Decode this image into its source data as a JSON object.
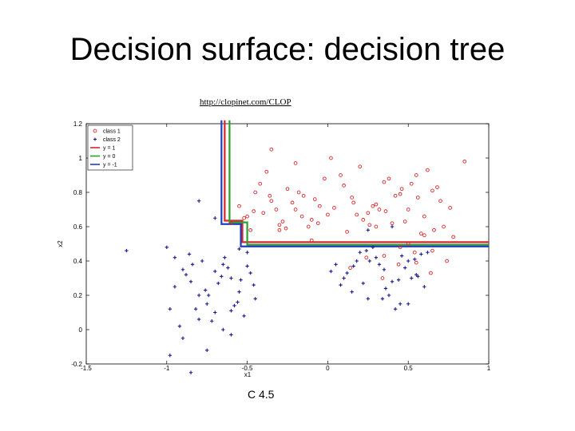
{
  "slide": {
    "title": "Decision surface: decision tree",
    "url": "http://clopinet.com/CLOP",
    "caption": "C 4.5"
  },
  "chart_data": {
    "type": "scatter",
    "xlabel": "x1",
    "ylabel": "x2",
    "xlim": [
      -1.5,
      1
    ],
    "ylim": [
      -0.2,
      1.2
    ],
    "xticks": [
      -1.5,
      -1,
      -0.5,
      0,
      0.5,
      1
    ],
    "xtick_labels": [
      "-1.5",
      "-1",
      "-0.5",
      "0",
      "0.5",
      "1"
    ],
    "yticks": [
      -0.2,
      0,
      0.2,
      0.4,
      0.6,
      0.8,
      1,
      1.2
    ],
    "ytick_labels": [
      "-0.2",
      "0",
      "0.2",
      "0.4",
      "0.6",
      "0.8",
      "1",
      "1.2"
    ],
    "legend_position": "top-left",
    "colors": {
      "class1": "#d62728",
      "class2": "#1a1a8c",
      "y1": "#d62728",
      "y0": "#2ca02c",
      "ym1": "#1f3fbf"
    },
    "series": [
      {
        "name": "class 1",
        "marker": "o",
        "color": "#d62728",
        "x": [
          -0.6,
          -0.55,
          -0.5,
          -0.45,
          -0.4,
          -0.35,
          -0.3,
          -0.25,
          -0.2,
          -0.15,
          -0.1,
          -0.05,
          0.0,
          -0.48,
          -0.42,
          -0.38,
          -0.32,
          -0.28,
          -0.22,
          -0.18,
          -0.12,
          -0.08,
          -0.02,
          -0.52,
          -0.46,
          -0.36,
          -0.26,
          -0.16,
          -0.06,
          0.04,
          0.1,
          0.15,
          0.2,
          0.25,
          0.3,
          0.35,
          0.4,
          0.45,
          0.5,
          0.55,
          0.6,
          0.65,
          0.7,
          0.12,
          0.22,
          0.32,
          0.42,
          0.52,
          0.62,
          0.72,
          0.18,
          0.28,
          0.38,
          0.48,
          0.58,
          0.68,
          0.78,
          0.85,
          0.08,
          0.16,
          0.26,
          0.36,
          0.46,
          0.56,
          0.66,
          0.76,
          0.14,
          0.24,
          0.34,
          0.44,
          0.54,
          0.64,
          0.74,
          -0.35,
          -0.2,
          0.02,
          0.3,
          0.5,
          0.6,
          -0.3,
          -0.1,
          0.35,
          0.45,
          0.55,
          0.65
        ],
        "y": [
          0.62,
          0.72,
          0.66,
          0.8,
          0.68,
          0.75,
          0.61,
          0.82,
          0.7,
          0.78,
          0.64,
          0.72,
          0.67,
          0.58,
          0.85,
          0.92,
          0.7,
          0.63,
          0.74,
          0.8,
          0.6,
          0.76,
          0.88,
          0.65,
          0.69,
          0.78,
          0.59,
          0.66,
          0.62,
          0.71,
          0.84,
          0.77,
          0.95,
          0.68,
          0.73,
          0.86,
          0.62,
          0.79,
          0.7,
          0.9,
          0.66,
          0.81,
          0.75,
          0.57,
          0.64,
          0.7,
          0.78,
          0.85,
          0.93,
          0.6,
          0.67,
          0.72,
          0.88,
          0.63,
          0.56,
          0.83,
          0.54,
          0.98,
          0.9,
          0.74,
          0.61,
          0.69,
          0.82,
          0.77,
          0.58,
          0.71,
          0.36,
          0.42,
          0.3,
          0.38,
          0.45,
          0.33,
          0.4,
          1.05,
          0.97,
          1.0,
          0.6,
          0.5,
          0.55,
          0.58,
          0.52,
          0.43,
          0.48,
          0.39,
          0.46
        ]
      },
      {
        "name": "class 2",
        "marker": "+",
        "color": "#1a1a8c",
        "x": [
          -1.25,
          -1.0,
          -0.95,
          -0.9,
          -0.85,
          -0.8,
          -0.75,
          -0.7,
          -0.65,
          -0.6,
          -0.55,
          -0.5,
          -0.45,
          -0.95,
          -0.88,
          -0.82,
          -0.78,
          -0.72,
          -0.68,
          -0.62,
          -0.58,
          -0.52,
          -0.48,
          -0.92,
          -0.86,
          -0.76,
          -0.66,
          -0.56,
          -0.46,
          -0.98,
          -0.84,
          -0.74,
          -0.64,
          -0.54,
          -0.8,
          -0.7,
          -0.6,
          -0.5,
          -0.9,
          -0.65,
          -0.55,
          -0.98,
          -0.85,
          -0.75,
          -0.6,
          0.05,
          0.1,
          0.15,
          0.2,
          0.25,
          0.3,
          0.35,
          0.4,
          0.45,
          0.5,
          0.55,
          0.6,
          0.08,
          0.18,
          0.28,
          0.38,
          0.48,
          0.58,
          0.12,
          0.22,
          0.32,
          0.42,
          0.52,
          0.62,
          0.02,
          0.26,
          0.36,
          0.46,
          0.56,
          0.16,
          0.34,
          0.44,
          0.54,
          0.24,
          0.5,
          -0.7,
          -0.8,
          0.4,
          0.25
        ],
        "y": [
          0.46,
          0.48,
          0.42,
          0.35,
          0.28,
          0.2,
          0.15,
          0.1,
          0.38,
          0.3,
          0.22,
          0.45,
          0.18,
          0.25,
          0.32,
          0.12,
          0.4,
          0.05,
          0.27,
          0.36,
          0.14,
          0.08,
          0.33,
          0.02,
          0.44,
          0.23,
          0.31,
          0.16,
          0.26,
          0.12,
          0.38,
          0.2,
          0.42,
          0.29,
          0.06,
          0.34,
          0.11,
          0.37,
          -0.05,
          0.0,
          0.47,
          -0.15,
          -0.25,
          -0.12,
          -0.03,
          0.38,
          0.3,
          0.22,
          0.45,
          0.18,
          0.42,
          0.35,
          0.28,
          0.15,
          0.4,
          0.32,
          0.25,
          0.26,
          0.4,
          0.48,
          0.2,
          0.36,
          0.44,
          0.33,
          0.27,
          0.38,
          0.12,
          0.3,
          0.45,
          0.34,
          0.4,
          0.24,
          0.43,
          0.31,
          0.37,
          0.18,
          0.29,
          0.41,
          0.46,
          0.15,
          0.65,
          0.75,
          0.6,
          0.58
        ]
      },
      {
        "name": "y = 1",
        "color": "#d62728",
        "x": [
          -0.64,
          -0.64,
          -0.53,
          -0.53,
          1.0
        ],
        "y": [
          1.22,
          0.635,
          0.635,
          0.51,
          0.51
        ]
      },
      {
        "name": "y = 0",
        "color": "#2ca02c",
        "x": [
          -0.61,
          -0.61,
          -0.5,
          -0.5,
          1.0
        ],
        "y": [
          1.22,
          0.625,
          0.625,
          0.495,
          0.495
        ]
      },
      {
        "name": "y = -1",
        "color": "#1f3fbf",
        "x": [
          -0.66,
          -0.66,
          -0.54,
          -0.54,
          1.0
        ],
        "y": [
          1.22,
          0.615,
          0.615,
          0.485,
          0.485
        ]
      }
    ]
  }
}
